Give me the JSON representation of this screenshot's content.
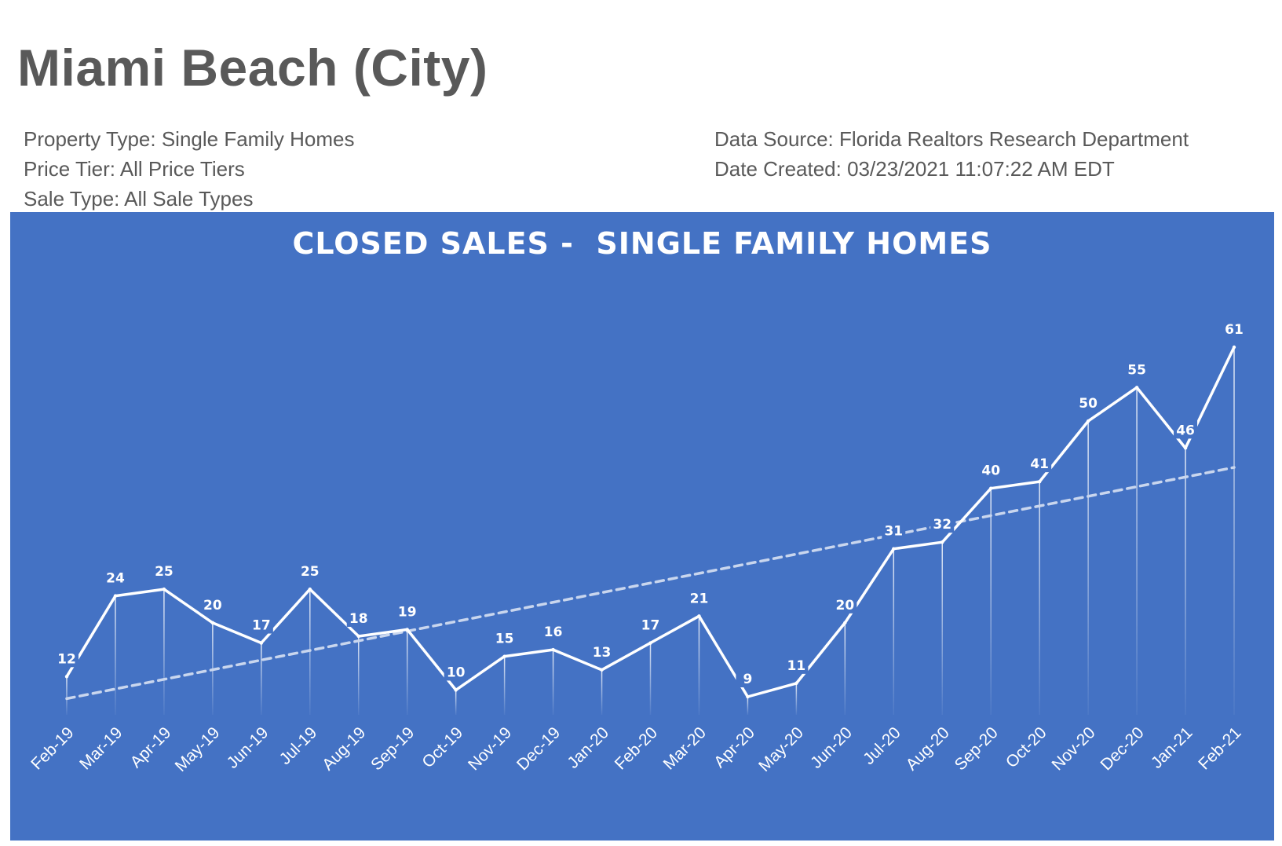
{
  "header": {
    "title": "Miami Beach (City)",
    "property_type": "Property Type: Single Family Homes",
    "price_tier": "Price Tier: All Price Tiers",
    "sale_type": "Sale Type: All Sale Types",
    "data_source": "Data Source: Florida Realtors Research Department",
    "date_created": "Date Created: 03/23/2021 11:07:22 AM EDT"
  },
  "colors": {
    "panel_background": "#4472c4",
    "series_line": "#ffffff",
    "trendline": "#c9d6ee",
    "text": "#595959"
  },
  "chart_data": {
    "type": "line",
    "title": "CLOSED SALES -  SINGLE FAMILY HOMES",
    "xlabel": "",
    "ylabel": "",
    "categories": [
      "Feb-19",
      "Mar-19",
      "Apr-19",
      "May-19",
      "Jun-19",
      "Jul-19",
      "Aug-19",
      "Sep-19",
      "Oct-19",
      "Nov-19",
      "Dec-19",
      "Jan-20",
      "Feb-20",
      "Mar-20",
      "Apr-20",
      "May-20",
      "Jun-20",
      "Jul-20",
      "Aug-20",
      "Sep-20",
      "Oct-20",
      "Nov-20",
      "Dec-20",
      "Jan-21",
      "Feb-21"
    ],
    "series": [
      {
        "values": [
          12,
          24,
          25,
          20,
          17,
          25,
          18,
          19,
          10,
          15,
          16,
          13,
          17,
          21,
          9,
          11,
          20,
          31,
          32,
          40,
          41,
          50,
          55,
          46,
          61
        ]
      }
    ],
    "trendline": {
      "type": "linear",
      "style": "dashed"
    },
    "drop_lines": true,
    "data_labels": true,
    "grid": false,
    "legend": "none",
    "ylim": [
      0,
      61
    ]
  }
}
